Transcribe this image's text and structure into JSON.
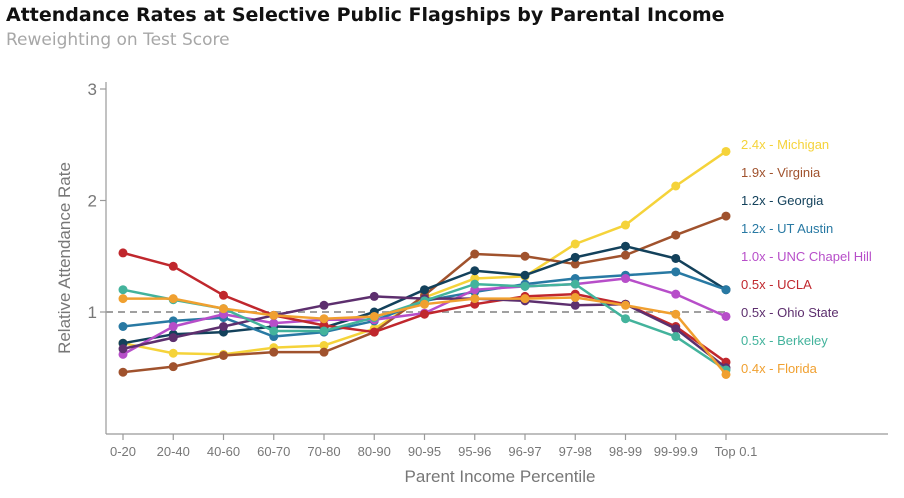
{
  "chart_data": {
    "type": "line",
    "title": "Attendance Rates at Selective Public Flagships by Parental Income",
    "subtitle": "Reweighting on Test Score",
    "xlabel": "Parent Income Percentile",
    "ylabel": "Relative Attendance Rate",
    "categories": [
      "0-20",
      "20-40",
      "40-60",
      "60-70",
      "70-80",
      "80-90",
      "90-95",
      "95-96",
      "96-97",
      "97-98",
      "98-99",
      "99-99.9",
      "Top 0.1"
    ],
    "ylim": [
      0,
      3.1
    ],
    "yticks": [
      1,
      2,
      3
    ],
    "reference_line": 1,
    "grid": false,
    "legend": "right-end labels",
    "series": [
      {
        "name": "Michigan",
        "label": "2.4x - Michigan",
        "color": "#f5d33a",
        "values": [
          0.72,
          0.63,
          0.62,
          0.68,
          0.7,
          0.85,
          1.13,
          1.3,
          1.32,
          1.61,
          1.78,
          2.13,
          2.44
        ]
      },
      {
        "name": "Virginia",
        "label": "1.9x - Virginia",
        "color": "#a0522d",
        "values": [
          0.46,
          0.51,
          0.61,
          0.64,
          0.64,
          0.82,
          1.15,
          1.52,
          1.5,
          1.43,
          1.51,
          1.69,
          1.86
        ]
      },
      {
        "name": "Georgia",
        "label": "1.2x - Georgia",
        "color": "#13415b",
        "values": [
          0.72,
          0.8,
          0.82,
          0.87,
          0.86,
          1.0,
          1.2,
          1.37,
          1.33,
          1.49,
          1.59,
          1.48,
          1.2
        ]
      },
      {
        "name": "UT Austin",
        "label": "1.2x - UT Austin",
        "color": "#2879a3",
        "values": [
          0.87,
          0.92,
          0.95,
          0.78,
          0.82,
          0.92,
          1.1,
          1.18,
          1.25,
          1.3,
          1.33,
          1.36,
          1.2
        ]
      },
      {
        "name": "UNC Chapel Hill",
        "label": "1.0x - UNC Chapel Hill",
        "color": "#b74ec9",
        "values": [
          0.62,
          0.87,
          0.98,
          0.9,
          0.93,
          0.93,
          0.99,
          1.2,
          1.23,
          1.25,
          1.3,
          1.16,
          0.96
        ]
      },
      {
        "name": "UCLA",
        "label": "0.5x - UCLA",
        "color": "#c0272d",
        "values": [
          1.53,
          1.41,
          1.15,
          0.97,
          0.88,
          0.82,
          0.98,
          1.07,
          1.14,
          1.16,
          1.07,
          0.87,
          0.55
        ]
      },
      {
        "name": "Ohio State",
        "label": "0.5x - Ohio State",
        "color": "#5d2f6e",
        "values": [
          0.67,
          0.77,
          0.87,
          0.97,
          1.06,
          1.14,
          1.12,
          1.12,
          1.1,
          1.06,
          1.07,
          0.85,
          0.5
        ]
      },
      {
        "name": "Berkeley",
        "label": "0.5x - Berkeley",
        "color": "#43b39c",
        "values": [
          1.2,
          1.11,
          1.03,
          0.83,
          0.83,
          0.95,
          1.1,
          1.25,
          1.23,
          1.25,
          0.94,
          0.78,
          0.48
        ]
      },
      {
        "name": "Florida",
        "label": "0.4x - Florida",
        "color": "#f0a030",
        "values": [
          1.12,
          1.12,
          1.03,
          0.97,
          0.94,
          0.96,
          1.07,
          1.12,
          1.12,
          1.13,
          1.06,
          0.98,
          0.44
        ]
      }
    ]
  }
}
